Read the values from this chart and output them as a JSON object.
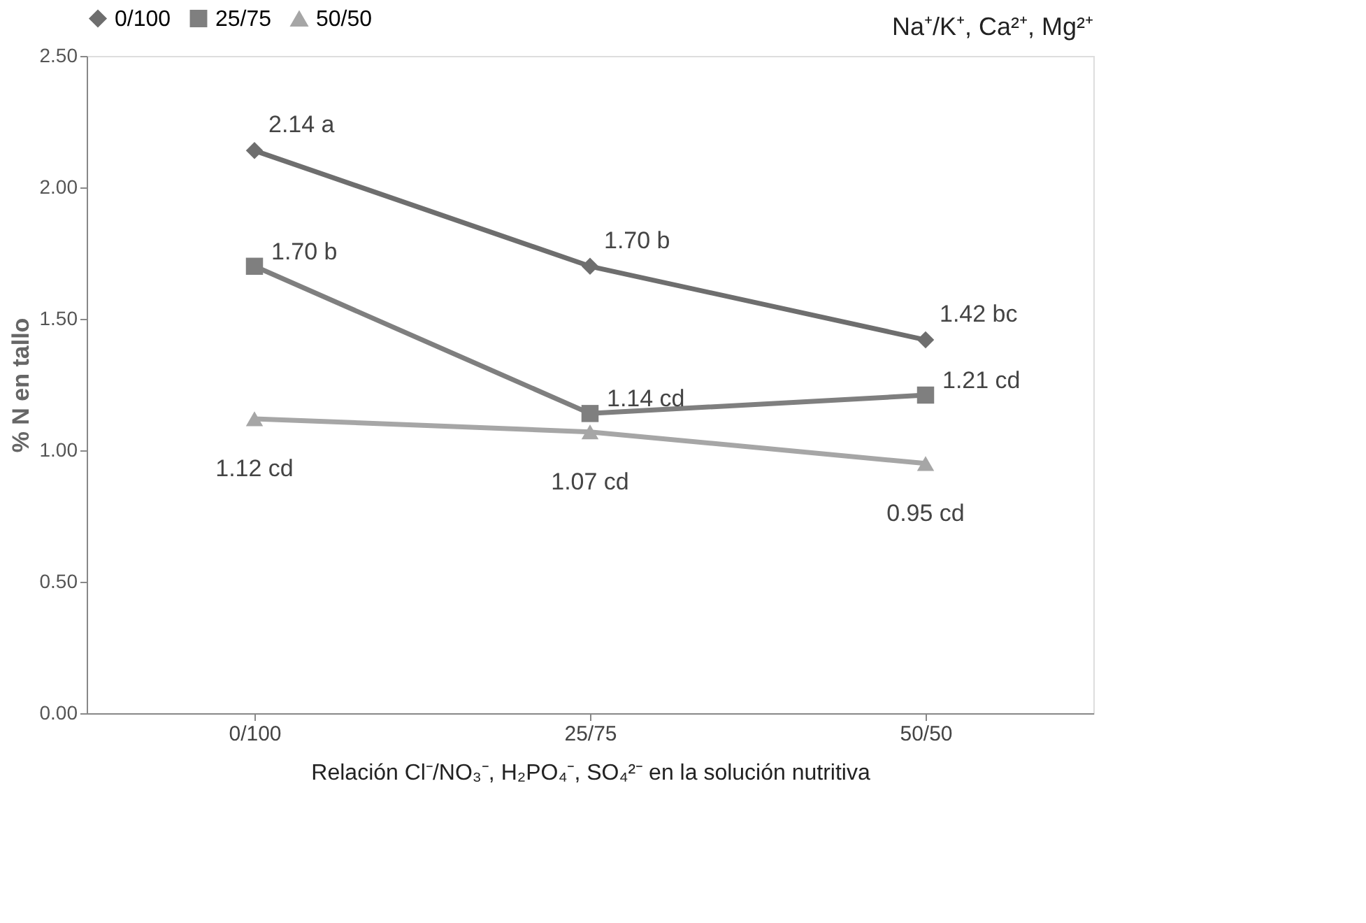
{
  "chart_data": {
    "type": "line",
    "xlabel": "Relación Cl⁻/NO₃⁻, H₂PO₄⁻, SO₄²⁻ en la solución nutritiva",
    "ylabel": "% N en tallo",
    "categories": [
      "0/100",
      "25/75",
      "50/50"
    ],
    "series": [
      {
        "name": "0/100",
        "color": "#6e6e6e",
        "marker": "diamond",
        "values": [
          2.14,
          1.7,
          1.42
        ],
        "value_labels": [
          "2.14 a",
          "1.70 b",
          "1.42 bc"
        ]
      },
      {
        "name": "25/75",
        "color": "#7f7f7f",
        "marker": "square",
        "values": [
          1.7,
          1.14,
          1.21
        ],
        "value_labels": [
          "1.70 b",
          "1.14 cd",
          "1.21 cd"
        ]
      },
      {
        "name": "50/50",
        "color": "#a6a6a6",
        "marker": "triangle",
        "values": [
          1.12,
          1.07,
          0.95
        ],
        "value_labels": [
          "1.12 cd",
          "1.07 cd",
          "0.95 cd"
        ]
      }
    ],
    "ylim": [
      0,
      2.5
    ],
    "yticks": [
      {
        "value": 0,
        "label": "0.00"
      },
      {
        "value": 0.5,
        "label": "0.50"
      },
      {
        "value": 1.0,
        "label": "1.00"
      },
      {
        "value": 1.5,
        "label": "1.50"
      },
      {
        "value": 2.0,
        "label": "2.00"
      },
      {
        "value": 2.5,
        "label": "2.50"
      }
    ],
    "grid": false,
    "legend": "top",
    "line_style": "solid",
    "annotations": [
      "Na⁺/K⁺, Ca²⁺, Mg²⁺"
    ]
  }
}
